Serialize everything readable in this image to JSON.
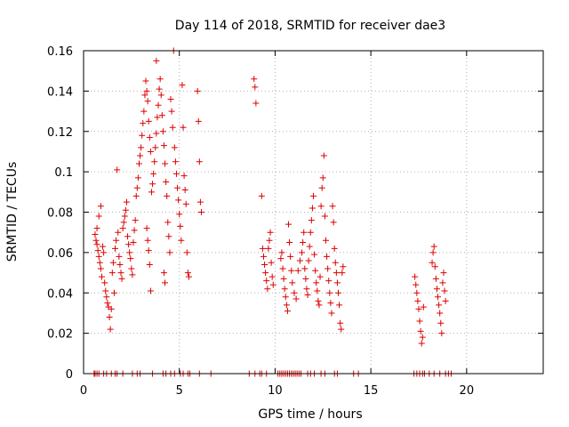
{
  "chart_data": {
    "type": "scatter",
    "title": "Day 114 of 2018, SRMTID for receiver dae3",
    "xlabel": "GPS time / hours",
    "ylabel": "SRMTID / TECUs",
    "xlim": [
      0,
      24
    ],
    "ylim": [
      0,
      0.16
    ],
    "xticks": [
      0,
      5,
      10,
      15,
      20
    ],
    "xtick_labels": [
      "0",
      "5",
      "10",
      "15",
      "20"
    ],
    "yticks": [
      0,
      0.02,
      0.04,
      0.06,
      0.08,
      0.1,
      0.12,
      0.14,
      0.16
    ],
    "ytick_labels": [
      "0",
      "0.02",
      "0.04",
      "0.06",
      "0.08",
      "0.1",
      "0.12",
      "0.14",
      "0.16"
    ],
    "grid": true,
    "marker": "+",
    "color": "#dd0000",
    "series": [
      {
        "name": "SRMTID",
        "points": [
          [
            0.6,
            0.069
          ],
          [
            0.65,
            0.066
          ],
          [
            0.7,
            0.064
          ],
          [
            0.75,
            0.061
          ],
          [
            0.8,
            0.058
          ],
          [
            0.85,
            0.055
          ],
          [
            0.9,
            0.052
          ],
          [
            0.95,
            0.048
          ],
          [
            0.7,
            0.072
          ],
          [
            0.8,
            0.078
          ],
          [
            0.9,
            0.083
          ],
          [
            1.0,
            0.063
          ],
          [
            1.05,
            0.06
          ],
          [
            1.1,
            0.045
          ],
          [
            1.15,
            0.041
          ],
          [
            1.2,
            0.038
          ],
          [
            1.25,
            0.035
          ],
          [
            1.3,
            0.033
          ],
          [
            1.35,
            0.028
          ],
          [
            1.4,
            0.022
          ],
          [
            1.45,
            0.032
          ],
          [
            1.5,
            0.05
          ],
          [
            1.55,
            0.055
          ],
          [
            1.6,
            0.04
          ],
          [
            1.65,
            0.062
          ],
          [
            1.7,
            0.066
          ],
          [
            1.75,
            0.101
          ],
          [
            1.8,
            0.07
          ],
          [
            1.85,
            0.058
          ],
          [
            1.9,
            0.054
          ],
          [
            1.95,
            0.05
          ],
          [
            2.0,
            0.047
          ],
          [
            2.05,
            0.072
          ],
          [
            2.1,
            0.075
          ],
          [
            2.15,
            0.078
          ],
          [
            2.2,
            0.081
          ],
          [
            2.25,
            0.085
          ],
          [
            2.3,
            0.068
          ],
          [
            2.35,
            0.064
          ],
          [
            2.4,
            0.06
          ],
          [
            2.45,
            0.057
          ],
          [
            2.5,
            0.052
          ],
          [
            2.55,
            0.049
          ],
          [
            2.6,
            0.065
          ],
          [
            2.65,
            0.071
          ],
          [
            2.7,
            0.076
          ],
          [
            2.75,
            0.088
          ],
          [
            2.8,
            0.092
          ],
          [
            2.85,
            0.097
          ],
          [
            2.9,
            0.104
          ],
          [
            2.95,
            0.108
          ],
          [
            3.0,
            0.112
          ],
          [
            3.05,
            0.118
          ],
          [
            3.1,
            0.124
          ],
          [
            3.15,
            0.13
          ],
          [
            3.2,
            0.138
          ],
          [
            3.25,
            0.145
          ],
          [
            3.3,
            0.14
          ],
          [
            3.35,
            0.135
          ],
          [
            3.4,
            0.125
          ],
          [
            3.45,
            0.117
          ],
          [
            3.5,
            0.11
          ],
          [
            3.3,
            0.072
          ],
          [
            3.35,
            0.066
          ],
          [
            3.4,
            0.061
          ],
          [
            3.45,
            0.054
          ],
          [
            3.5,
            0.041
          ],
          [
            3.55,
            0.09
          ],
          [
            3.6,
            0.094
          ],
          [
            3.65,
            0.099
          ],
          [
            3.7,
            0.105
          ],
          [
            3.75,
            0.112
          ],
          [
            3.8,
            0.119
          ],
          [
            3.85,
            0.127
          ],
          [
            3.9,
            0.133
          ],
          [
            3.95,
            0.141
          ],
          [
            3.8,
            0.155
          ],
          [
            4.0,
            0.146
          ],
          [
            4.05,
            0.138
          ],
          [
            4.1,
            0.128
          ],
          [
            4.15,
            0.12
          ],
          [
            4.2,
            0.113
          ],
          [
            4.25,
            0.104
          ],
          [
            4.3,
            0.095
          ],
          [
            4.35,
            0.088
          ],
          [
            4.4,
            0.075
          ],
          [
            4.45,
            0.068
          ],
          [
            4.5,
            0.06
          ],
          [
            4.2,
            0.05
          ],
          [
            4.25,
            0.045
          ],
          [
            4.55,
            0.136
          ],
          [
            4.6,
            0.13
          ],
          [
            4.65,
            0.122
          ],
          [
            4.7,
            0.16
          ],
          [
            4.75,
            0.112
          ],
          [
            4.8,
            0.105
          ],
          [
            4.85,
            0.099
          ],
          [
            4.9,
            0.092
          ],
          [
            4.95,
            0.086
          ],
          [
            5.0,
            0.079
          ],
          [
            5.05,
            0.073
          ],
          [
            5.1,
            0.066
          ],
          [
            5.15,
            0.143
          ],
          [
            5.2,
            0.122
          ],
          [
            5.25,
            0.098
          ],
          [
            5.3,
            0.091
          ],
          [
            5.35,
            0.084
          ],
          [
            5.4,
            0.06
          ],
          [
            5.45,
            0.05
          ],
          [
            5.5,
            0.048
          ],
          [
            5.95,
            0.14
          ],
          [
            6.0,
            0.125
          ],
          [
            6.05,
            0.105
          ],
          [
            6.1,
            0.085
          ],
          [
            6.15,
            0.08
          ],
          [
            8.9,
            0.146
          ],
          [
            8.95,
            0.142
          ],
          [
            9.0,
            0.134
          ],
          [
            9.3,
            0.088
          ],
          [
            9.35,
            0.062
          ],
          [
            9.4,
            0.058
          ],
          [
            9.45,
            0.054
          ],
          [
            9.5,
            0.05
          ],
          [
            9.55,
            0.046
          ],
          [
            9.6,
            0.042
          ],
          [
            9.65,
            0.062
          ],
          [
            9.7,
            0.066
          ],
          [
            9.75,
            0.07
          ],
          [
            9.8,
            0.055
          ],
          [
            9.85,
            0.048
          ],
          [
            9.9,
            0.044
          ],
          [
            10.3,
            0.057
          ],
          [
            10.35,
            0.06
          ],
          [
            10.4,
            0.052
          ],
          [
            10.45,
            0.047
          ],
          [
            10.5,
            0.042
          ],
          [
            10.55,
            0.038
          ],
          [
            10.6,
            0.034
          ],
          [
            10.65,
            0.031
          ],
          [
            10.7,
            0.074
          ],
          [
            10.75,
            0.065
          ],
          [
            10.8,
            0.058
          ],
          [
            10.85,
            0.051
          ],
          [
            10.9,
            0.045
          ],
          [
            11.0,
            0.04
          ],
          [
            11.1,
            0.037
          ],
          [
            11.2,
            0.051
          ],
          [
            11.3,
            0.056
          ],
          [
            11.4,
            0.06
          ],
          [
            11.45,
            0.065
          ],
          [
            11.5,
            0.07
          ],
          [
            11.55,
            0.052
          ],
          [
            11.6,
            0.047
          ],
          [
            11.65,
            0.042
          ],
          [
            11.7,
            0.039
          ],
          [
            11.75,
            0.056
          ],
          [
            11.8,
            0.063
          ],
          [
            11.85,
            0.07
          ],
          [
            11.9,
            0.076
          ],
          [
            11.95,
            0.082
          ],
          [
            12.0,
            0.088
          ],
          [
            12.05,
            0.059
          ],
          [
            12.1,
            0.051
          ],
          [
            12.15,
            0.045
          ],
          [
            12.2,
            0.041
          ],
          [
            12.25,
            0.036
          ],
          [
            12.3,
            0.034
          ],
          [
            12.35,
            0.048
          ],
          [
            12.4,
            0.083
          ],
          [
            12.45,
            0.092
          ],
          [
            12.5,
            0.097
          ],
          [
            12.55,
            0.108
          ],
          [
            12.6,
            0.078
          ],
          [
            12.65,
            0.066
          ],
          [
            12.7,
            0.058
          ],
          [
            12.75,
            0.052
          ],
          [
            12.8,
            0.046
          ],
          [
            12.85,
            0.04
          ],
          [
            12.9,
            0.035
          ],
          [
            12.95,
            0.03
          ],
          [
            13.0,
            0.083
          ],
          [
            13.05,
            0.075
          ],
          [
            13.1,
            0.062
          ],
          [
            13.15,
            0.055
          ],
          [
            13.2,
            0.05
          ],
          [
            13.25,
            0.045
          ],
          [
            13.3,
            0.04
          ],
          [
            13.35,
            0.034
          ],
          [
            13.4,
            0.025
          ],
          [
            13.45,
            0.022
          ],
          [
            13.5,
            0.05
          ],
          [
            13.55,
            0.053
          ],
          [
            17.3,
            0.048
          ],
          [
            17.35,
            0.044
          ],
          [
            17.4,
            0.04
          ],
          [
            17.45,
            0.036
          ],
          [
            17.5,
            0.032
          ],
          [
            17.55,
            0.026
          ],
          [
            17.6,
            0.021
          ],
          [
            17.65,
            0.015
          ],
          [
            17.7,
            0.018
          ],
          [
            17.75,
            0.033
          ],
          [
            18.2,
            0.055
          ],
          [
            18.25,
            0.06
          ],
          [
            18.3,
            0.063
          ],
          [
            18.35,
            0.053
          ],
          [
            18.4,
            0.047
          ],
          [
            18.45,
            0.042
          ],
          [
            18.5,
            0.038
          ],
          [
            18.55,
            0.034
          ],
          [
            18.6,
            0.03
          ],
          [
            18.65,
            0.025
          ],
          [
            18.7,
            0.02
          ],
          [
            18.75,
            0.045
          ],
          [
            18.8,
            0.05
          ],
          [
            18.85,
            0.041
          ],
          [
            18.9,
            0.036
          ]
        ],
        "zero_times": [
          0.55,
          0.6,
          0.7,
          0.8,
          1.05,
          1.2,
          1.45,
          1.65,
          1.75,
          2.05,
          2.55,
          2.8,
          2.95,
          3.6,
          4.15,
          4.3,
          4.55,
          4.75,
          5.05,
          5.2,
          5.45,
          5.55,
          6.05,
          6.65,
          8.65,
          8.95,
          9.2,
          9.3,
          9.55,
          10.15,
          10.25,
          10.35,
          10.45,
          10.55,
          10.65,
          10.75,
          10.85,
          10.95,
          11.05,
          11.15,
          11.25,
          11.35,
          11.7,
          11.85,
          12.05,
          12.4,
          12.6,
          13.1,
          13.25,
          14.1,
          14.35,
          17.25,
          17.4,
          17.55,
          17.7,
          17.8,
          18.05,
          18.3,
          18.6,
          18.9,
          19.05,
          19.2
        ]
      }
    ]
  }
}
